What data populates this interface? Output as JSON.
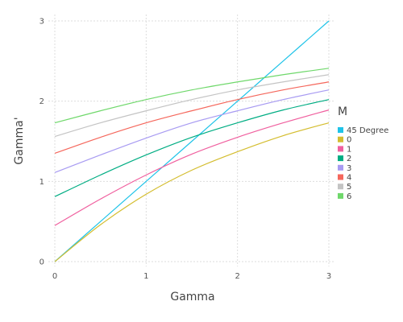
{
  "chart_data": {
    "type": "line",
    "xlabel": "Gamma",
    "ylabel": "Gamma'",
    "xlim": [
      0,
      3
    ],
    "ylim": [
      0,
      3
    ],
    "x_ticks": [
      "0",
      "1",
      "2",
      "3"
    ],
    "y_ticks": [
      "0",
      "1",
      "2",
      "3"
    ],
    "grid": true,
    "legend_title": "M",
    "legend_position": "right",
    "series": [
      {
        "name": "45 Degree",
        "color": "#1fc3e8",
        "x": [
          0,
          0.5,
          1,
          1.5,
          2,
          2.5,
          3
        ],
        "y": [
          0,
          0.5,
          1,
          1.5,
          2,
          2.5,
          3
        ]
      },
      {
        "name": "0",
        "color": "#d4bd2f",
        "x": [
          0,
          0.5,
          1,
          1.5,
          2,
          2.5,
          3
        ],
        "y": [
          0,
          0.46,
          0.84,
          1.14,
          1.37,
          1.57,
          1.73
        ]
      },
      {
        "name": "1",
        "color": "#f0609f",
        "x": [
          0,
          0.5,
          1,
          1.5,
          2,
          2.5,
          3
        ],
        "y": [
          0.45,
          0.78,
          1.08,
          1.34,
          1.55,
          1.73,
          1.89
        ]
      },
      {
        "name": "2",
        "color": "#00ad83",
        "x": [
          0,
          0.5,
          1,
          1.5,
          2,
          2.5,
          3
        ],
        "y": [
          0.81,
          1.08,
          1.33,
          1.55,
          1.73,
          1.89,
          2.02
        ]
      },
      {
        "name": "3",
        "color": "#a89bf2",
        "x": [
          0,
          0.5,
          1,
          1.5,
          2,
          2.5,
          3
        ],
        "y": [
          1.11,
          1.33,
          1.54,
          1.73,
          1.88,
          2.02,
          2.14
        ]
      },
      {
        "name": "4",
        "color": "#f5675c",
        "x": [
          0,
          0.5,
          1,
          1.5,
          2,
          2.5,
          3
        ],
        "y": [
          1.35,
          1.55,
          1.73,
          1.88,
          2.02,
          2.14,
          2.24
        ]
      },
      {
        "name": "5",
        "color": "#c4c4c4",
        "x": [
          0,
          0.5,
          1,
          1.5,
          2,
          2.5,
          3
        ],
        "y": [
          1.56,
          1.73,
          1.88,
          2.02,
          2.14,
          2.24,
          2.33
        ]
      },
      {
        "name": "6",
        "color": "#6fd86b",
        "x": [
          0,
          0.5,
          1,
          1.5,
          2,
          2.5,
          3
        ],
        "y": [
          1.73,
          1.88,
          2.02,
          2.14,
          2.24,
          2.33,
          2.41
        ]
      }
    ]
  }
}
